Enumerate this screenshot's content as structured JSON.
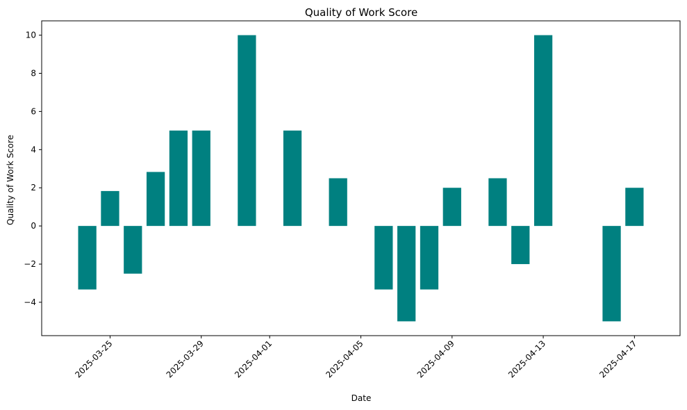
{
  "chart_data": {
    "type": "bar",
    "title": "Quality of Work Score",
    "xlabel": "Date",
    "ylabel": "Quality of Work Score",
    "ylim": [
      -5.75,
      10.75
    ],
    "xlim": [
      "2025-03-22",
      "2025-04-19"
    ],
    "grid": false,
    "legend": "none",
    "bar_color": "#008080",
    "bars": [
      {
        "date": "2025-03-24",
        "value": -3.33
      },
      {
        "date": "2025-03-25",
        "value": 1.83
      },
      {
        "date": "2025-03-26",
        "value": -2.5
      },
      {
        "date": "2025-03-27",
        "value": 2.83
      },
      {
        "date": "2025-03-28",
        "value": 5.0
      },
      {
        "date": "2025-03-29",
        "value": 5.0
      },
      {
        "date": "2025-03-31",
        "value": 10.0
      },
      {
        "date": "2025-04-02",
        "value": 5.0
      },
      {
        "date": "2025-04-04",
        "value": 2.5
      },
      {
        "date": "2025-04-06",
        "value": -3.33
      },
      {
        "date": "2025-04-07",
        "value": -5.0
      },
      {
        "date": "2025-04-08",
        "value": -3.33
      },
      {
        "date": "2025-04-09",
        "value": 2.0
      },
      {
        "date": "2025-04-11",
        "value": 2.5
      },
      {
        "date": "2025-04-12",
        "value": -2.0
      },
      {
        "date": "2025-04-13",
        "value": 10.0
      },
      {
        "date": "2025-04-16",
        "value": -5.0
      },
      {
        "date": "2025-04-17",
        "value": 2.0
      }
    ],
    "x_ticks": [
      "2025-03-25",
      "2025-03-29",
      "2025-04-01",
      "2025-04-05",
      "2025-04-09",
      "2025-04-13",
      "2025-04-17"
    ],
    "y_ticks": [
      {
        "value": -4,
        "label": "−4"
      },
      {
        "value": -2,
        "label": "−2"
      },
      {
        "value": 0,
        "label": "0"
      },
      {
        "value": 2,
        "label": "2"
      },
      {
        "value": 4,
        "label": "4"
      },
      {
        "value": 6,
        "label": "6"
      },
      {
        "value": 8,
        "label": "8"
      },
      {
        "value": 10,
        "label": "10"
      }
    ]
  }
}
